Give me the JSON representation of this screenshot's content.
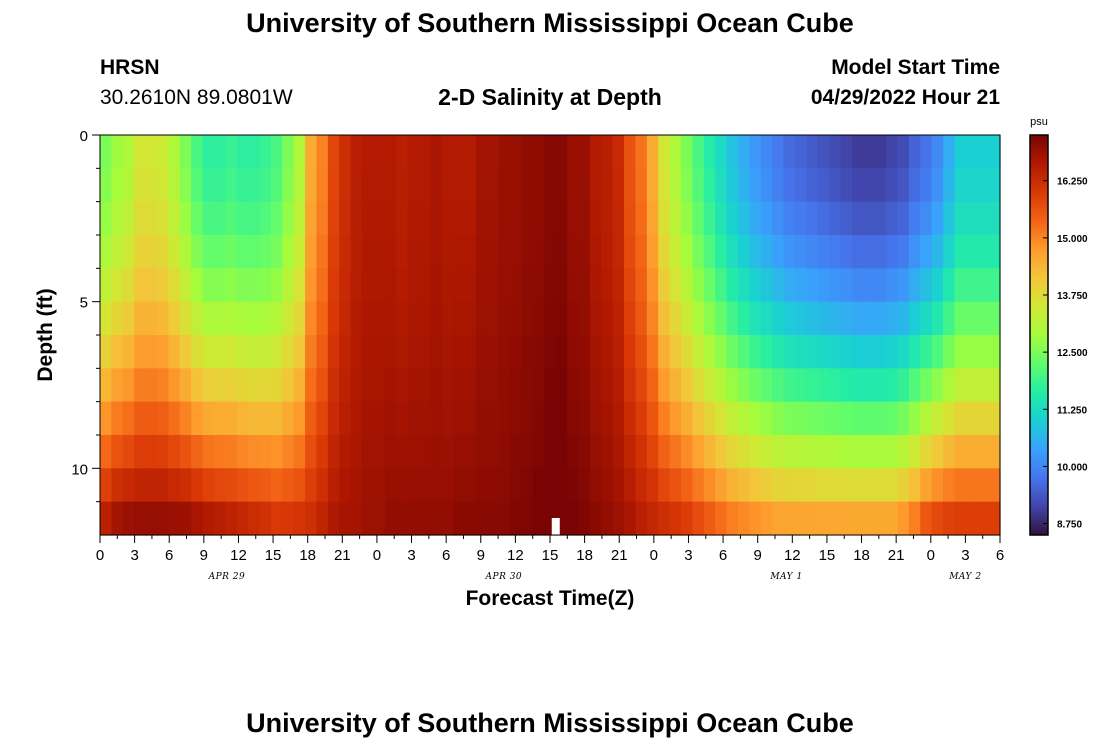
{
  "page": {
    "title": "University of Southern Mississippi Ocean Cube",
    "station": "HRSN",
    "coords": "30.2610N  89.0801W",
    "subtitle": "2-D Salinity at Depth",
    "model_start_label": "Model Start Time",
    "model_start_value": "04/29/2022 Hour 21",
    "footer_title": "University of Southern Mississippi Ocean Cube"
  },
  "chart_data": {
    "type": "heatmap",
    "title": "2-D Salinity at Depth",
    "xlabel": "Forecast Time(Z)",
    "ylabel": "Depth (ft)",
    "x_range_hours": [
      0,
      78
    ],
    "y_range_ft": [
      0,
      12
    ],
    "x_tick_labels": [
      "0",
      "3",
      "6",
      "9",
      "12",
      "15",
      "18",
      "21",
      "0",
      "3",
      "6",
      "9",
      "12",
      "15",
      "18",
      "21",
      "0",
      "3",
      "6",
      "9",
      "12",
      "15",
      "18",
      "21",
      "0",
      "3",
      "6"
    ],
    "y_tick_labels": [
      "0",
      "5",
      "10"
    ],
    "y_tick_values": [
      0,
      5,
      10
    ],
    "day_labels": [
      {
        "text": "APR 29",
        "hour": 11
      },
      {
        "text": "APR 30",
        "hour": 35
      },
      {
        "text": "MAY 1",
        "hour": 59.5
      },
      {
        "text": "MAY 2",
        "hour": 75
      }
    ],
    "current_time_marker_hour": 39.5,
    "colorbar": {
      "unit": "psu",
      "min": 8.5,
      "max": 17.25,
      "ticks": [
        "8.750",
        "10.000",
        "11.250",
        "12.500",
        "13.750",
        "15.000",
        "16.250"
      ],
      "tick_values": [
        8.75,
        10.0,
        11.25,
        12.5,
        13.75,
        15.0,
        16.25
      ],
      "colors": [
        "#30123b",
        "#4145ab",
        "#4675ed",
        "#39a2fc",
        "#1bcfd4",
        "#24eca6",
        "#61fc6c",
        "#a4fc3b",
        "#d1e834",
        "#f3c63a",
        "#fe9b2d",
        "#f36315",
        "#d93806",
        "#b11901",
        "#7a0403"
      ]
    },
    "salinity_surface_psu": [
      12.5,
      12.8,
      13.0,
      13.5,
      13.5,
      13.4,
      13.0,
      12.5,
      12.0,
      11.7,
      11.7,
      11.8,
      11.7,
      11.7,
      11.8,
      12.0,
      12.5,
      13.0,
      14.5,
      15.0,
      15.8,
      16.2,
      16.5,
      16.6,
      16.6,
      16.6,
      16.5,
      16.6,
      16.6,
      16.7,
      16.6,
      16.6,
      16.6,
      16.8,
      16.8,
      16.9,
      16.9,
      17.0,
      17.0,
      17.1,
      17.1,
      16.9,
      16.9,
      16.6,
      16.5,
      16.3,
      15.6,
      15.2,
      14.5,
      13.5,
      13.0,
      12.5,
      12.0,
      11.6,
      11.2,
      10.8,
      10.5,
      10.2,
      10.0,
      9.8,
      9.6,
      9.5,
      9.4,
      9.3,
      9.2,
      9.1,
      9.0,
      9.0,
      9.0,
      9.1,
      9.2,
      9.5,
      9.7,
      10.0,
      10.5,
      11.0,
      11.0,
      11.0,
      11.0
    ],
    "salinity_bottom_psu": [
      16.8,
      17.1,
      17.2,
      17.2,
      17.2,
      17.2,
      17.2,
      17.2,
      17.1,
      17.0,
      16.9,
      16.8,
      16.7,
      16.6,
      16.5,
      16.3,
      16.3,
      16.3,
      16.3,
      16.5,
      16.7,
      16.8,
      16.8,
      16.9,
      16.9,
      17.0,
      17.0,
      17.0,
      17.0,
      17.0,
      17.0,
      17.1,
      17.1,
      17.1,
      17.1,
      17.1,
      17.2,
      17.2,
      17.3,
      17.4,
      17.5,
      17.3,
      17.2,
      17.1,
      17.0,
      16.9,
      16.8,
      16.6,
      16.5,
      16.4,
      16.3,
      16.2,
      16.0,
      15.8,
      15.6,
      15.4,
      15.3,
      15.2,
      15.1,
      15.0,
      15.0,
      15.0,
      15.0,
      15.0,
      15.0,
      15.0,
      15.0,
      15.0,
      15.0,
      15.0,
      15.2,
      15.5,
      16.0,
      16.2,
      16.3,
      16.3,
      16.3,
      16.3,
      16.3
    ],
    "depth_profile_exponent": 1.8
  }
}
